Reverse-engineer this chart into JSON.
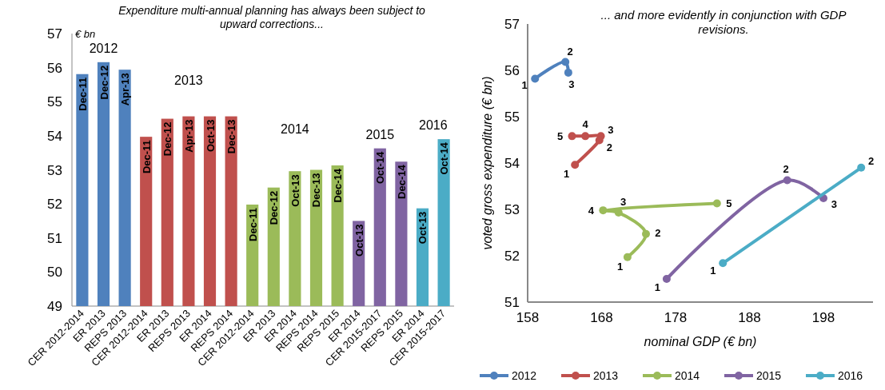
{
  "chart_data": [
    {
      "type": "bar",
      "title": "Expenditure multi-annual planning has always been subject to upward corrections...",
      "ylabel": "€ bn",
      "categories": [
        "CER 2012-2014",
        "ER 2013",
        "REPS 2013",
        "CER 2012-2014",
        "ER 2013",
        "REPS 2013",
        "ER 2014",
        "REPS 2014",
        "CER 2012-2014",
        "ER 2013",
        "ER 2014",
        "REPS 2014",
        "REPS 2015",
        "ER 2014",
        "CER 2015-2017",
        "REPS 2015",
        "ER 2014",
        "CER 2015-2017"
      ],
      "series": [
        {
          "name": "2012",
          "color": "#4f81bd",
          "values": [
            55.81,
            56.16,
            55.94,
            null,
            null,
            null,
            null,
            null,
            null,
            null,
            null,
            null,
            null,
            null,
            null,
            null,
            null,
            null
          ],
          "value_labels": [
            "Dec-11",
            "Dec-12",
            "Apr-13",
            null,
            null,
            null,
            null,
            null,
            null,
            null,
            null,
            null,
            null,
            null,
            null,
            null,
            null,
            null
          ]
        },
        {
          "name": "2013",
          "color": "#c0504d",
          "values": [
            null,
            null,
            null,
            53.97,
            54.5,
            54.57,
            54.57,
            54.57,
            null,
            null,
            null,
            null,
            null,
            null,
            null,
            null,
            null,
            null
          ],
          "value_labels": [
            null,
            null,
            null,
            "Dec-11",
            "Dec-12",
            "Apr-13",
            "Oct-13",
            "Dec-13",
            null,
            null,
            null,
            null,
            null,
            null,
            null,
            null,
            null,
            null
          ]
        },
        {
          "name": "2014",
          "color": "#9bbb59",
          "values": [
            null,
            null,
            null,
            null,
            null,
            null,
            null,
            null,
            51.98,
            52.48,
            52.96,
            53.0,
            53.13,
            null,
            null,
            null,
            null,
            null
          ],
          "value_labels": [
            null,
            null,
            null,
            null,
            null,
            null,
            null,
            null,
            "Dec-11",
            "Dec-12",
            "Oct-13",
            "Dec-13",
            "Dec-14",
            null,
            null,
            null,
            null,
            null
          ]
        },
        {
          "name": "2015",
          "color": "#8064a2",
          "values": [
            null,
            null,
            null,
            null,
            null,
            null,
            null,
            null,
            null,
            null,
            null,
            null,
            null,
            51.5,
            53.63,
            53.24,
            null,
            null
          ],
          "value_labels": [
            null,
            null,
            null,
            null,
            null,
            null,
            null,
            null,
            null,
            null,
            null,
            null,
            null,
            "Oct-13",
            "Oct-14",
            "Dec-14",
            null,
            null
          ]
        },
        {
          "name": "2016",
          "color": "#4bacc6",
          "values": [
            null,
            null,
            null,
            null,
            null,
            null,
            null,
            null,
            null,
            null,
            null,
            null,
            null,
            null,
            null,
            null,
            51.87,
            53.9
          ],
          "value_labels": [
            null,
            null,
            null,
            null,
            null,
            null,
            null,
            null,
            null,
            null,
            null,
            null,
            null,
            null,
            null,
            null,
            "Oct-13",
            "Oct-14"
          ]
        }
      ],
      "ylim": [
        49,
        57
      ],
      "yticks": [
        49,
        50,
        51,
        52,
        53,
        54,
        55,
        56,
        57
      ]
    },
    {
      "type": "line",
      "title": "... and more evidently in conjunction with GDP revisions.",
      "xlabel": "nominal GDP (€ bn)",
      "ylabel": "voted gross expenditure (€ bn)",
      "marker": "circle",
      "legend": "bottom",
      "series": [
        {
          "name": "2012",
          "color": "#4f81bd",
          "x": [
            159.0,
            163.1,
            163.5
          ],
          "values": [
            55.82,
            56.18,
            55.95
          ]
        },
        {
          "name": "2013",
          "color": "#c0504d",
          "x": [
            164.4,
            167.7,
            167.9,
            165.8,
            164.0
          ],
          "values": [
            53.96,
            54.49,
            54.58,
            54.58,
            54.58
          ]
        },
        {
          "name": "2014",
          "color": "#9bbb59",
          "x": [
            171.5,
            174.0,
            170.3,
            168.2,
            183.6
          ],
          "values": [
            51.97,
            52.47,
            52.93,
            52.98,
            53.13
          ]
        },
        {
          "name": "2015",
          "color": "#8064a2",
          "x": [
            176.8,
            193.1,
            198.0
          ],
          "values": [
            51.5,
            53.63,
            53.24
          ]
        },
        {
          "name": "2016",
          "color": "#4bacc6",
          "x": [
            184.4,
            203.1
          ],
          "values": [
            51.84,
            53.9
          ]
        }
      ],
      "annotations": [
        {
          "text": "1",
          "x": 159.0,
          "y": 55.82
        },
        {
          "text": "2",
          "x": 163.1,
          "y": 56.18
        },
        {
          "text": "3",
          "x": 163.5,
          "y": 55.95
        },
        {
          "text": "1",
          "x": 164.4,
          "y": 53.96
        },
        {
          "text": "2",
          "x": 167.7,
          "y": 54.49
        },
        {
          "text": "3",
          "x": 167.9,
          "y": 54.58
        },
        {
          "text": "4",
          "x": 165.8,
          "y": 54.58
        },
        {
          "text": "5",
          "x": 164.0,
          "y": 54.58
        },
        {
          "text": "1",
          "x": 171.5,
          "y": 51.97
        },
        {
          "text": "2",
          "x": 174.0,
          "y": 52.47
        },
        {
          "text": "3",
          "x": 170.3,
          "y": 52.93
        },
        {
          "text": "4",
          "x": 168.2,
          "y": 52.98
        },
        {
          "text": "5",
          "x": 183.6,
          "y": 53.13
        },
        {
          "text": "1",
          "x": 176.8,
          "y": 51.5
        },
        {
          "text": "2",
          "x": 193.1,
          "y": 53.63
        },
        {
          "text": "3",
          "x": 198.0,
          "y": 53.24
        },
        {
          "text": "1",
          "x": 184.4,
          "y": 51.84
        },
        {
          "text": "2",
          "x": 203.1,
          "y": 53.9
        }
      ],
      "xlim": [
        158,
        204.7
      ],
      "xticks": [
        158,
        168,
        178,
        188,
        198
      ],
      "ylim": [
        51,
        57
      ],
      "yticks": [
        51,
        52,
        53,
        54,
        55,
        56,
        57
      ]
    }
  ]
}
